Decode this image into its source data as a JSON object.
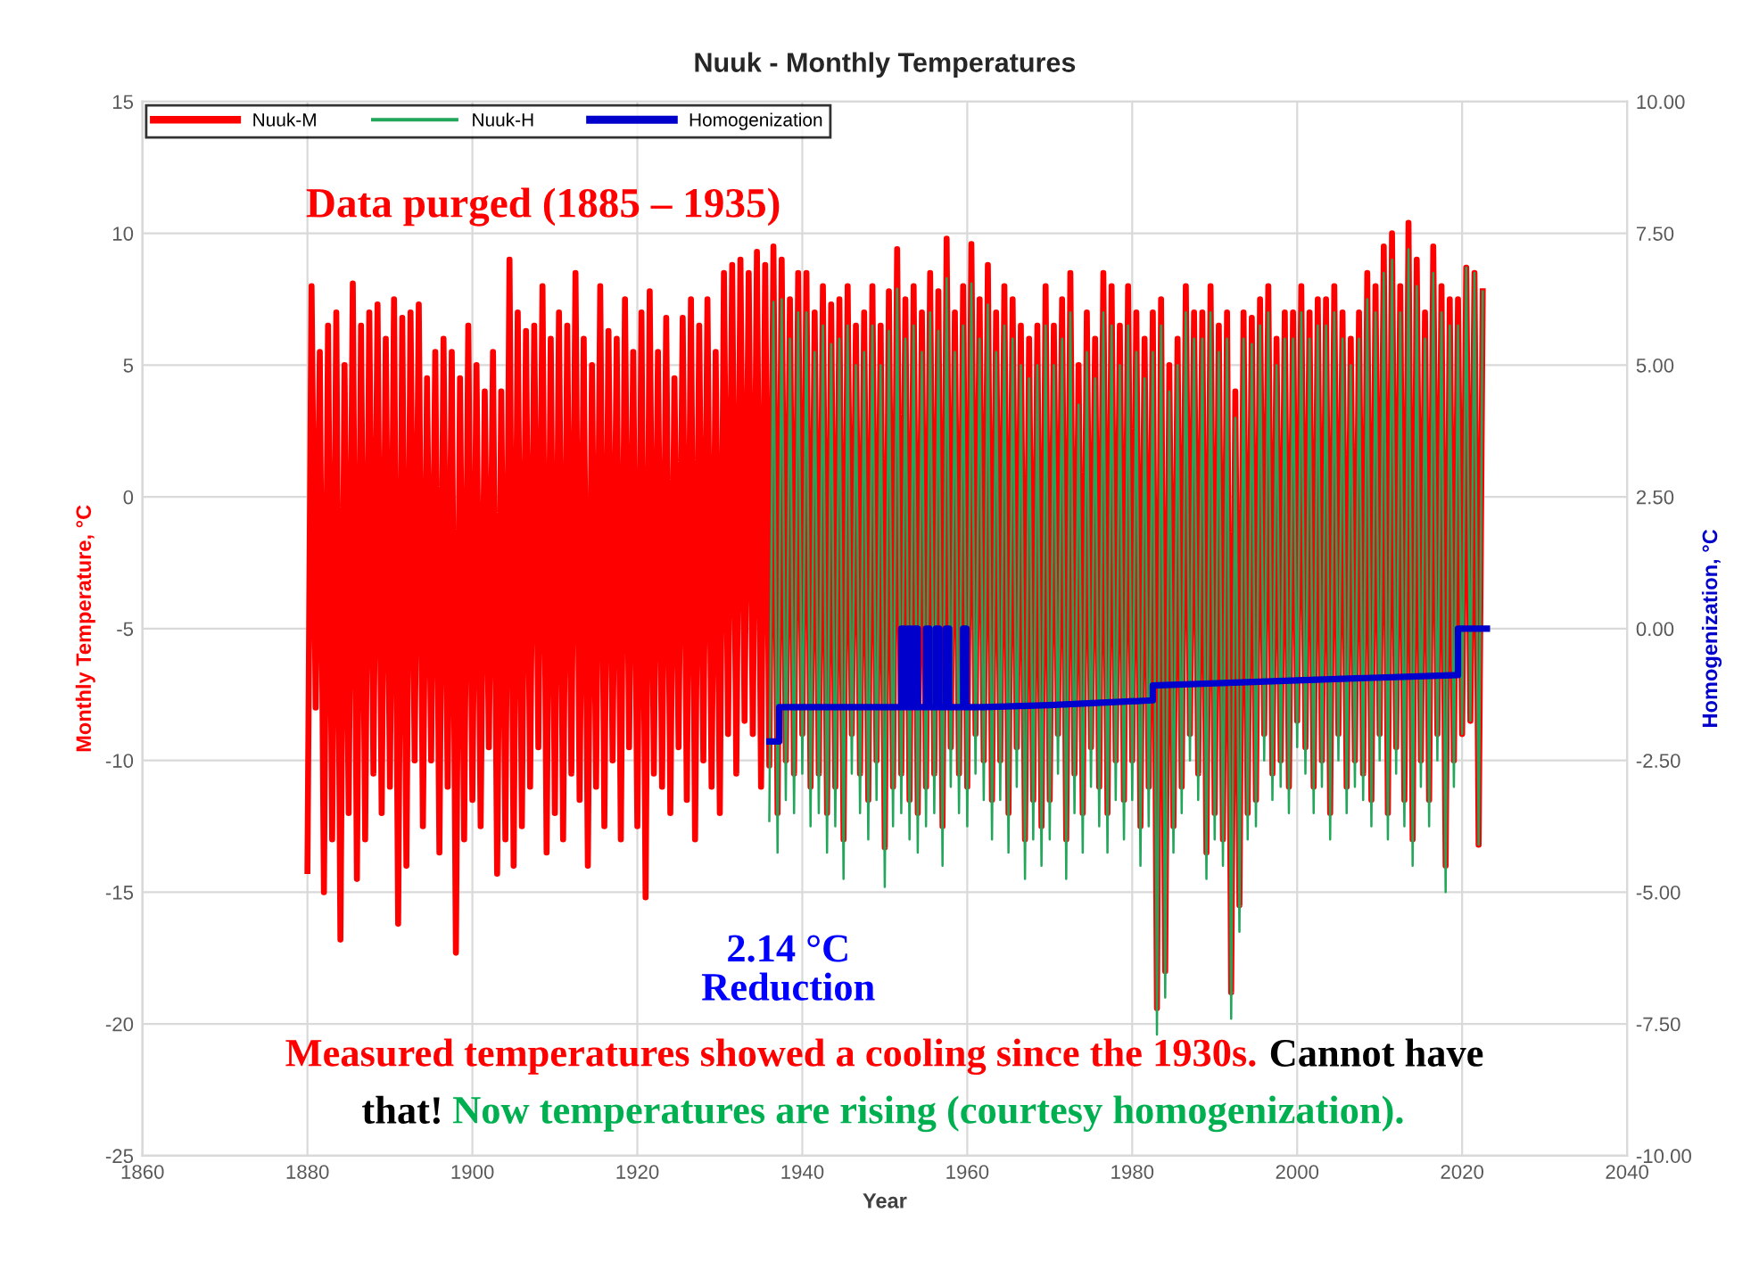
{
  "chart_data": {
    "type": "line",
    "title": "Nuuk - Monthly Temperatures",
    "xlabel": "Year",
    "ylabel": "Monthly Temperature, °C",
    "y2label": "Homogenization, °C",
    "xlim": [
      1860,
      2040
    ],
    "xticks": [
      1860,
      1880,
      1900,
      1920,
      1940,
      1960,
      1980,
      2000,
      2020,
      2040
    ],
    "ylim": [
      -25,
      15
    ],
    "yticks": [
      -25,
      -20,
      -15,
      -10,
      -5,
      0,
      5,
      10,
      15
    ],
    "y2lim": [
      -10,
      10
    ],
    "y2ticks": [
      {
        "value": -10,
        "label": "-10.00"
      },
      {
        "value": -7.5,
        "label": "-7.50"
      },
      {
        "value": -5,
        "label": "-5.00"
      },
      {
        "value": -2.5,
        "label": "-2.50"
      },
      {
        "value": 0,
        "label": "0.00"
      },
      {
        "value": 2.5,
        "label": "2.50"
      },
      {
        "value": 5,
        "label": "5.00"
      },
      {
        "value": 7.5,
        "label": "7.50"
      },
      {
        "value": 10,
        "label": "10.00"
      }
    ],
    "grid": true,
    "legend": "top left",
    "marker": "none",
    "line_style": "solid",
    "annotations": [
      "Data purged (1885 – 1935)",
      "2.14 °C\nReduction",
      "Measured temperatures showed a cooling since the 1930s.",
      "Cannot have\nthat!",
      "Now temperatures are rising (courtesy homogenization)."
    ],
    "series": [
      {
        "name": "Nuuk-M",
        "color": "#ff0000",
        "x": [
          1880,
          1880.5,
          1881,
          1881.5,
          1882,
          1882.5,
          1883,
          1883.5,
          1884,
          1884.5,
          1885,
          1885.5,
          1886,
          1886.5,
          1887,
          1887.5,
          1888,
          1888.5,
          1889,
          1889.5,
          1890,
          1890.5,
          1891,
          1891.5,
          1892,
          1892.5,
          1893,
          1893.5,
          1894,
          1894.5,
          1895,
          1895.5,
          1896,
          1896.5,
          1897,
          1897.5,
          1898,
          1898.5,
          1899,
          1899.5,
          1900,
          1900.5,
          1901,
          1901.5,
          1902,
          1902.5,
          1903,
          1903.5,
          1904,
          1904.5,
          1905,
          1905.5,
          1906,
          1906.5,
          1907,
          1907.5,
          1908,
          1908.5,
          1909,
          1909.5,
          1910,
          1910.5,
          1911,
          1911.5,
          1912,
          1912.5,
          1913,
          1913.5,
          1914,
          1914.5,
          1915,
          1915.5,
          1916,
          1916.5,
          1917,
          1917.5,
          1918,
          1918.5,
          1919,
          1919.5,
          1920,
          1920.5,
          1921,
          1921.5,
          1922,
          1922.5,
          1923,
          1923.5,
          1924,
          1924.5,
          1925,
          1925.5,
          1926,
          1926.5,
          1927,
          1927.5,
          1928,
          1928.5,
          1929,
          1929.5,
          1930,
          1930.5,
          1931,
          1931.5,
          1932,
          1932.5,
          1933,
          1933.5,
          1934,
          1934.5,
          1935,
          1935.5,
          1936,
          1936.5,
          1937,
          1937.5,
          1938,
          1938.5,
          1939,
          1939.5,
          1940,
          1940.5,
          1941,
          1941.5,
          1942,
          1942.5,
          1943,
          1943.5,
          1944,
          1944.5,
          1945,
          1945.5,
          1946,
          1946.5,
          1947,
          1947.5,
          1948,
          1948.5,
          1949,
          1949.5,
          1950,
          1950.5,
          1951,
          1951.5,
          1952,
          1952.5,
          1953,
          1953.5,
          1954,
          1954.5,
          1955,
          1955.5,
          1956,
          1956.5,
          1957,
          1957.5,
          1958,
          1958.5,
          1959,
          1959.5,
          1960,
          1960.5,
          1961,
          1961.5,
          1962,
          1962.5,
          1963,
          1963.5,
          1964,
          1964.5,
          1965,
          1965.5,
          1966,
          1966.5,
          1967,
          1967.5,
          1968,
          1968.5,
          1969,
          1969.5,
          1970,
          1970.5,
          1971,
          1971.5,
          1972,
          1972.5,
          1973,
          1973.5,
          1974,
          1974.5,
          1975,
          1975.5,
          1976,
          1976.5,
          1977,
          1977.5,
          1978,
          1978.5,
          1979,
          1979.5,
          1980,
          1980.5,
          1981,
          1981.5,
          1982,
          1982.5,
          1983,
          1983.5,
          1984,
          1984.5,
          1985,
          1985.5,
          1986,
          1986.5,
          1987,
          1987.5,
          1988,
          1988.5,
          1989,
          1989.5,
          1990,
          1990.5,
          1991,
          1991.5,
          1992,
          1992.5,
          1993,
          1993.5,
          1994,
          1994.5,
          1995,
          1995.5,
          1996,
          1996.5,
          1997,
          1997.5,
          1998,
          1998.5,
          1999,
          1999.5,
          2000,
          2000.5,
          2001,
          2001.5,
          2002,
          2002.5,
          2003,
          2003.5,
          2004,
          2004.5,
          2005,
          2005.5,
          2006,
          2006.5,
          2007,
          2007.5,
          2008,
          2008.5,
          2009,
          2009.5,
          2010,
          2010.5,
          2011,
          2011.5,
          2012,
          2012.5,
          2013,
          2013.5,
          2014,
          2014.5,
          2015,
          2015.5,
          2016,
          2016.5,
          2017,
          2017.5,
          2018,
          2018.5,
          2019,
          2019.5,
          2020,
          2020.5,
          2021,
          2021.5,
          2022,
          2022.5
        ],
        "values": [
          -14.2,
          8.0,
          -8.0,
          5.5,
          -15.0,
          6.5,
          -13.0,
          7.0,
          -16.8,
          5.0,
          -12.0,
          8.1,
          -14.5,
          6.5,
          -13.0,
          7.0,
          -10.5,
          7.3,
          -12.0,
          6.0,
          -11.0,
          7.5,
          -16.2,
          6.8,
          -14.0,
          7.0,
          -10.0,
          7.3,
          -12.5,
          4.5,
          -10.0,
          5.5,
          -13.5,
          6.0,
          -11.0,
          5.5,
          -17.3,
          4.5,
          -13.0,
          6.5,
          -11.5,
          5.0,
          -12.5,
          4.0,
          -9.5,
          5.5,
          -14.3,
          4.0,
          -13.0,
          9.0,
          -14.0,
          7.0,
          -12.5,
          6.3,
          -11.0,
          6.5,
          -9.5,
          8.0,
          -13.5,
          6.0,
          -12.0,
          7.0,
          -13.0,
          6.5,
          -10.5,
          8.5,
          -11.5,
          6.0,
          -14.0,
          5.0,
          -11.0,
          8.0,
          -12.5,
          6.3,
          -10.0,
          6.0,
          -13.0,
          7.5,
          -9.5,
          5.5,
          -12.5,
          7.0,
          -15.2,
          7.8,
          -10.5,
          5.5,
          -11.0,
          6.8,
          -12.0,
          4.5,
          -9.5,
          6.8,
          -11.5,
          7.5,
          -13.0,
          6.5,
          -10.0,
          7.5,
          -11.0,
          5.5,
          -12.0,
          8.5,
          -9.0,
          8.8,
          -10.5,
          9.0,
          -8.5,
          8.5,
          -9.0,
          9.3,
          -11.0,
          8.8,
          -10.2,
          9.5,
          -12.0,
          9.0,
          -10.0,
          7.5,
          -10.5,
          8.5,
          -9.0,
          8.5,
          -11.0,
          7.0,
          -10.5,
          8.0,
          -12.0,
          7.3,
          -11.0,
          7.5,
          -13.0,
          8.0,
          -9.0,
          6.5,
          -10.5,
          7.0,
          -11.5,
          8.0,
          -10.0,
          6.5,
          -13.3,
          7.8,
          -11.0,
          9.4,
          -10.5,
          7.5,
          -11.5,
          8.0,
          -12.0,
          7.0,
          -11.0,
          8.5,
          -10.5,
          7.8,
          -12.5,
          9.8,
          -9.5,
          7.0,
          -10.5,
          8.0,
          -11.0,
          9.6,
          -9.0,
          7.5,
          -10.0,
          8.8,
          -11.5,
          7.0,
          -10.0,
          8.0,
          -12.0,
          7.5,
          -9.5,
          6.5,
          -13.0,
          6.0,
          -11.5,
          6.5,
          -12.5,
          8.0,
          -11.5,
          6.5,
          -9.0,
          7.5,
          -13.0,
          8.5,
          -10.5,
          5.0,
          -12.0,
          7.0,
          -9.5,
          6.0,
          -11.0,
          8.5,
          -12.0,
          8.0,
          -10.0,
          6.5,
          -11.5,
          8.0,
          -10.0,
          7.0,
          -12.5,
          6.0,
          -11.0,
          7.0,
          -19.4,
          7.5,
          -18.0,
          5.0,
          -12.5,
          6.0,
          -11.0,
          8.0,
          -9.0,
          7.0,
          -10.5,
          7.0,
          -13.5,
          8.0,
          -12.0,
          6.5,
          -13.0,
          7.0,
          -18.8,
          4.0,
          -15.5,
          7.0,
          -12.0,
          6.8,
          -11.5,
          7.5,
          -9.0,
          8.0,
          -10.5,
          6.0,
          -10.0,
          7.0,
          -11.0,
          7.0,
          -8.5,
          8.0,
          -9.5,
          7.0,
          -11.0,
          7.5,
          -10.0,
          7.5,
          -12.0,
          8.0,
          -9.0,
          7.0,
          -11.0,
          6.0,
          -10.0,
          7.0,
          -10.5,
          8.5,
          -11.5,
          8.0,
          -9.0,
          9.5,
          -12.0,
          10.0,
          -9.5,
          8.0,
          -11.5,
          10.4,
          -13.0,
          9.0,
          -10.0,
          7.0,
          -11.5,
          9.5,
          -9.0,
          8.0,
          -14.0,
          7.5,
          -10.0,
          7.5,
          -9.0,
          8.7,
          -8.5,
          8.5,
          -13.2,
          7.8
        ]
      },
      {
        "name": "Nuuk-H",
        "color": "#22a65a",
        "x": [
          1936,
          1936.5,
          1937,
          1937.5,
          1938,
          1938.5,
          1939,
          1939.5,
          1940,
          1940.5,
          1941,
          1941.5,
          1942,
          1942.5,
          1943,
          1943.5,
          1944,
          1944.5,
          1945,
          1945.5,
          1946,
          1946.5,
          1947,
          1947.5,
          1948,
          1948.5,
          1949,
          1949.5,
          1950,
          1950.5,
          1951,
          1951.5,
          1952,
          1952.5,
          1953,
          1953.5,
          1954,
          1954.5,
          1955,
          1955.5,
          1956,
          1956.5,
          1957,
          1957.5,
          1958,
          1958.5,
          1959,
          1959.5,
          1960,
          1960.5,
          1961,
          1961.5,
          1962,
          1962.5,
          1963,
          1963.5,
          1964,
          1964.5,
          1965,
          1965.5,
          1966,
          1966.5,
          1967,
          1967.5,
          1968,
          1968.5,
          1969,
          1969.5,
          1970,
          1970.5,
          1971,
          1971.5,
          1972,
          1972.5,
          1973,
          1973.5,
          1974,
          1974.5,
          1975,
          1975.5,
          1976,
          1976.5,
          1977,
          1977.5,
          1978,
          1978.5,
          1979,
          1979.5,
          1980,
          1980.5,
          1981,
          1981.5,
          1982,
          1982.5,
          1983,
          1983.5,
          1984,
          1984.5,
          1985,
          1985.5,
          1986,
          1986.5,
          1987,
          1987.5,
          1988,
          1988.5,
          1989,
          1989.5,
          1990,
          1990.5,
          1991,
          1991.5,
          1992,
          1992.5,
          1993,
          1993.5,
          1994,
          1994.5,
          1995,
          1995.5,
          1996,
          1996.5,
          1997,
          1997.5,
          1998,
          1998.5,
          1999,
          1999.5,
          2000,
          2000.5,
          2001,
          2001.5,
          2002,
          2002.5,
          2003,
          2003.5,
          2004,
          2004.5,
          2005,
          2005.5,
          2006,
          2006.5,
          2007,
          2007.5,
          2008,
          2008.5,
          2009,
          2009.5,
          2010,
          2010.5,
          2011,
          2011.5,
          2012,
          2012.5,
          2013,
          2013.5,
          2014,
          2014.5,
          2015,
          2015.5,
          2016,
          2016.5,
          2017,
          2017.5,
          2018,
          2018.5,
          2019,
          2019.5,
          2020,
          2020.5,
          2021,
          2021.5,
          2022,
          2022.5
        ],
        "values": [
          -12.3,
          7.4,
          -13.5,
          7.5,
          -11.5,
          6.0,
          -12.0,
          7.0,
          -10.5,
          7.0,
          -12.5,
          5.5,
          -12.0,
          6.5,
          -13.5,
          5.8,
          -12.5,
          6.0,
          -14.5,
          6.5,
          -10.5,
          5.0,
          -12.0,
          5.5,
          -13.0,
          6.5,
          -11.5,
          5.0,
          -14.8,
          6.3,
          -12.5,
          7.9,
          -12.0,
          6.0,
          -13.0,
          6.5,
          -13.5,
          5.5,
          -12.5,
          7.0,
          -12.0,
          6.3,
          -14.0,
          8.3,
          -11.0,
          5.5,
          -12.0,
          6.5,
          -12.5,
          8.1,
          -10.5,
          6.0,
          -11.5,
          7.3,
          -13.0,
          5.5,
          -11.5,
          6.5,
          -13.5,
          6.0,
          -11.0,
          5.0,
          -14.5,
          4.5,
          -13.0,
          5.0,
          -14.0,
          6.5,
          -13.0,
          5.0,
          -10.5,
          6.0,
          -14.5,
          7.0,
          -12.0,
          3.5,
          -13.5,
          5.5,
          -11.0,
          4.5,
          -12.5,
          7.0,
          -13.5,
          6.5,
          -11.5,
          5.0,
          -13.0,
          6.5,
          -11.5,
          5.5,
          -14.0,
          4.5,
          -12.5,
          5.5,
          -20.4,
          6.5,
          -19.0,
          4.0,
          -13.5,
          5.0,
          -12.0,
          7.0,
          -10.0,
          6.0,
          -11.5,
          6.0,
          -14.5,
          7.0,
          -13.0,
          5.5,
          -14.0,
          6.0,
          -19.8,
          3.0,
          -16.5,
          6.0,
          -13.0,
          5.8,
          -12.5,
          6.5,
          -10.0,
          7.0,
          -11.5,
          5.0,
          -11.0,
          6.0,
          -12.0,
          6.0,
          -9.5,
          7.0,
          -10.5,
          6.0,
          -12.0,
          6.5,
          -11.0,
          6.5,
          -13.0,
          7.0,
          -10.0,
          6.0,
          -12.0,
          5.0,
          -11.0,
          6.0,
          -11.5,
          7.5,
          -12.5,
          7.0,
          -10.0,
          8.5,
          -13.0,
          9.0,
          -10.5,
          7.0,
          -12.5,
          9.4,
          -14.0,
          8.0,
          -11.0,
          6.0,
          -12.5,
          8.5,
          -10.0,
          7.0,
          -15.0,
          6.5,
          -11.0,
          6.5,
          -9.0,
          8.7,
          -8.5,
          8.5,
          -13.2,
          7.8
        ]
      },
      {
        "name": "Homogenization",
        "color": "#0000cc",
        "axis": "y2",
        "x": [
          1936,
          1937.2,
          1937.2,
          1952,
          1952,
          1952.4,
          1952.4,
          1952.8,
          1952.8,
          1953.2,
          1953.2,
          1953.6,
          1953.6,
          1954,
          1954,
          1955,
          1955,
          1955.4,
          1955.4,
          1956.2,
          1956.2,
          1956.6,
          1956.6,
          1957.4,
          1957.4,
          1957.8,
          1957.8,
          1959.5,
          1959.5,
          1959.9,
          1959.9,
          1962,
          1970,
          1982.5,
          1982.5,
          2000,
          2019.5,
          2019.5,
          2023
        ],
        "values": [
          -2.14,
          -2.14,
          -1.49,
          -1.49,
          0,
          0,
          -1.49,
          -1.49,
          0,
          0,
          -1.49,
          -1.49,
          0,
          0,
          -1.49,
          -1.49,
          0,
          0,
          -1.49,
          -1.49,
          0,
          0,
          -1.49,
          -1.49,
          0,
          0,
          -1.49,
          -1.49,
          0,
          0,
          -1.49,
          -1.49,
          -1.45,
          -1.36,
          -1.08,
          -0.98,
          -0.88,
          0,
          0
        ]
      }
    ]
  }
}
